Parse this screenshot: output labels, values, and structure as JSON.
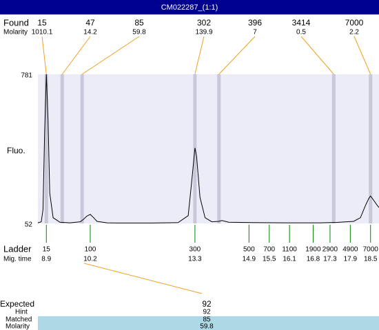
{
  "header": {
    "title": "CM022287_(1:1)"
  },
  "found": {
    "label": "Found",
    "molarity_label": "Molarity",
    "sizes": [
      15,
      47,
      85,
      302,
      396,
      3414,
      7000
    ],
    "molarity": [
      1010.1,
      14.2,
      59.8,
      139.9,
      7,
      0.5,
      2.2
    ],
    "times": [
      8.9,
      9.37,
      9.96,
      13.3,
      14.01,
      17.41,
      18.5
    ]
  },
  "plot": {
    "y_label": "Fluo.",
    "ylim": [
      52,
      781
    ],
    "yticks": [
      52,
      781
    ],
    "xlim": [
      8.65,
      18.75
    ],
    "trace": {
      "x": [
        8.65,
        8.75,
        8.8,
        8.85,
        8.9,
        8.95,
        9.0,
        9.1,
        9.3,
        9.6,
        9.9,
        10.0,
        10.1,
        10.2,
        10.3,
        10.4,
        10.7,
        11,
        12,
        12.8,
        13.1,
        13.2,
        13.3,
        13.35,
        13.45,
        13.6,
        13.8,
        14.0,
        14.1,
        14.3,
        15,
        16,
        17,
        17.5,
        18.0,
        18.2,
        18.35,
        18.45,
        18.5,
        18.55,
        18.7,
        18.75
      ],
      "values": [
        55,
        60,
        120,
        500,
        781,
        560,
        200,
        80,
        58,
        55,
        60,
        72,
        88,
        96,
        80,
        62,
        55,
        54,
        54,
        56,
        90,
        250,
        421,
        380,
        180,
        80,
        60,
        62,
        66,
        58,
        56,
        55,
        55,
        57,
        62,
        80,
        140,
        175,
        186,
        175,
        140,
        130
      ]
    }
  },
  "ladder": {
    "label": "Ladder",
    "time_label": "Mig. time",
    "sizes": [
      15,
      100,
      300,
      500,
      700,
      1100,
      1900,
      2900,
      4900,
      7000
    ],
    "times": [
      8.9,
      10.2,
      13.3,
      14.9,
      15.5,
      16.1,
      16.8,
      17.3,
      17.9,
      18.5
    ]
  },
  "match": {
    "expected_label": "Expected",
    "expected": 92,
    "hint_label": "Hint",
    "hint": 92,
    "matched_label": "Matched",
    "matched": 85,
    "molarity_label": "Molarity",
    "molarity": 59.8
  }
}
